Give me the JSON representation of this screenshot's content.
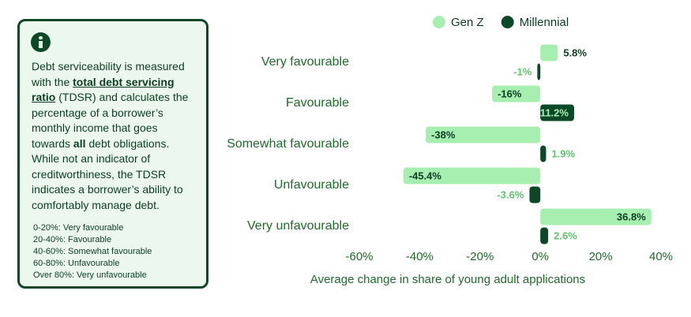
{
  "info": {
    "text_parts": [
      "Debt serviceability is measured with the ",
      "total debt servicing ratio",
      " (TDSR) and calculates the percentage of a borrower’s monthly income that goes towards ",
      "all",
      " debt obligations. While not an indicator of creditworthiness, the TDSR indicates a borrower’s ability to comfortably manage debt."
    ],
    "ranges": [
      "0-20%: Very favourable",
      "20-40%: Favourable",
      "40-60%: Somewhat favourable",
      "60-80%: Unfavourable",
      "Over 80%: Very unfavourable"
    ]
  },
  "chart_data": {
    "type": "hbar",
    "x_label": "Average change in share of young adult applications",
    "categories": [
      "Very favourable",
      "Favourable",
      "Somewhat favourable",
      "Unfavourable",
      "Very unfavourable"
    ],
    "series": [
      {
        "name": "Gen Z",
        "color": "#a7efb0",
        "values": [
          5.8,
          -16,
          -38,
          -45.4,
          36.8
        ],
        "value_labels": [
          "5.8%",
          "-16%",
          "-38%",
          "-45.4%",
          "36.8%"
        ]
      },
      {
        "name": "Millennial",
        "color": "#0c4827",
        "values": [
          -1,
          11.2,
          1.9,
          -3.6,
          2.6
        ],
        "value_labels": [
          "-1%",
          "11.2%",
          "1.9%",
          "-3.6%",
          "2.6%"
        ]
      }
    ],
    "xlim": [
      -60,
      40
    ],
    "xticks": [
      {
        "value": -60,
        "label": "-60%"
      },
      {
        "value": -40,
        "label": "-40%"
      },
      {
        "value": -20,
        "label": "-20%"
      },
      {
        "value": 0,
        "label": "0%"
      },
      {
        "value": 20,
        "label": "20%"
      },
      {
        "value": 40,
        "label": "40%"
      }
    ],
    "legend": "top"
  }
}
